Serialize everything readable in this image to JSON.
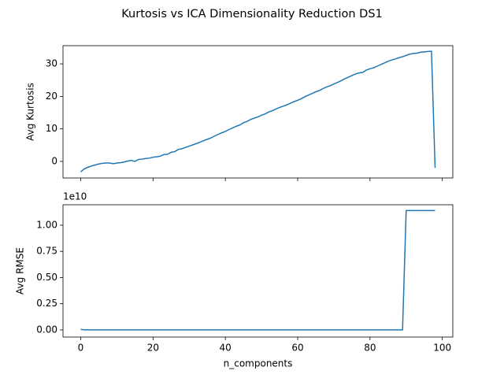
{
  "title": "Kurtosis vs ICA Dimensionality Reduction DS1",
  "chart_data": [
    {
      "type": "line",
      "ylabel": "Avg Kurtosis",
      "color": "#1f77b4",
      "x": [
        0,
        1,
        2,
        3,
        4,
        5,
        6,
        7,
        8,
        9,
        10,
        11,
        12,
        13,
        14,
        15,
        16,
        17,
        18,
        19,
        20,
        21,
        22,
        23,
        24,
        25,
        26,
        27,
        28,
        29,
        30,
        31,
        32,
        33,
        34,
        35,
        36,
        37,
        38,
        39,
        40,
        41,
        42,
        43,
        44,
        45,
        46,
        47,
        48,
        49,
        50,
        51,
        52,
        53,
        54,
        55,
        56,
        57,
        58,
        59,
        60,
        61,
        62,
        63,
        64,
        65,
        66,
        67,
        68,
        69,
        70,
        71,
        72,
        73,
        74,
        75,
        76,
        77,
        78,
        79,
        80,
        81,
        82,
        83,
        84,
        85,
        86,
        87,
        88,
        89,
        90,
        91,
        92,
        93,
        94,
        95,
        96,
        97,
        98
      ],
      "values": [
        -3.2,
        -2.3,
        -1.8,
        -1.4,
        -1.1,
        -0.8,
        -0.6,
        -0.5,
        -0.5,
        -0.7,
        -0.5,
        -0.4,
        -0.2,
        0.1,
        0.3,
        0.0,
        0.6,
        0.7,
        0.9,
        1.0,
        1.3,
        1.4,
        1.6,
        2.1,
        2.2,
        2.8,
        3.0,
        3.7,
        3.9,
        4.3,
        4.7,
        5.1,
        5.5,
        5.9,
        6.4,
        6.8,
        7.2,
        7.8,
        8.3,
        8.8,
        9.2,
        9.8,
        10.3,
        10.8,
        11.2,
        11.9,
        12.3,
        12.9,
        13.3,
        13.7,
        14.2,
        14.6,
        15.2,
        15.6,
        16.1,
        16.6,
        17.0,
        17.4,
        17.9,
        18.4,
        18.8,
        19.3,
        19.9,
        20.4,
        20.9,
        21.4,
        21.8,
        22.4,
        22.9,
        23.3,
        23.8,
        24.3,
        24.8,
        25.4,
        25.9,
        26.4,
        26.9,
        27.2,
        27.4,
        28.1,
        28.5,
        28.8,
        29.3,
        29.8,
        30.3,
        30.8,
        31.2,
        31.5,
        31.9,
        32.2,
        32.6,
        33.0,
        33.2,
        33.3,
        33.6,
        33.7,
        33.8,
        33.9,
        -2.0
      ],
      "xlim": [
        -4.9,
        102.9
      ],
      "xticks": [
        0,
        20,
        40,
        60,
        80,
        100
      ],
      "ylim": [
        -5.1,
        35.6
      ],
      "yticks": [
        0,
        10,
        20,
        30
      ]
    },
    {
      "type": "line",
      "ylabel": "Avg RMSE",
      "xlabel": "n_components",
      "y_offset_label": "1e10",
      "color": "#1f77b4",
      "x": [
        0,
        1,
        2,
        3,
        4,
        5,
        6,
        7,
        8,
        9,
        10,
        11,
        12,
        13,
        14,
        15,
        16,
        17,
        18,
        19,
        20,
        21,
        22,
        23,
        24,
        25,
        26,
        27,
        28,
        29,
        30,
        31,
        32,
        33,
        34,
        35,
        36,
        37,
        38,
        39,
        40,
        41,
        42,
        43,
        44,
        45,
        46,
        47,
        48,
        49,
        50,
        51,
        52,
        53,
        54,
        55,
        56,
        57,
        58,
        59,
        60,
        61,
        62,
        63,
        64,
        65,
        66,
        67,
        68,
        69,
        70,
        71,
        72,
        73,
        74,
        75,
        76,
        77,
        78,
        79,
        80,
        81,
        82,
        83,
        84,
        85,
        86,
        87,
        88,
        89,
        90,
        91,
        92,
        93,
        94,
        95,
        96,
        97,
        98
      ],
      "values": [
        0.005,
        0.001,
        0.001,
        0.001,
        0.001,
        0.001,
        0.001,
        0.001,
        0.001,
        0.001,
        0.001,
        0.001,
        0.001,
        0.001,
        0.001,
        0.001,
        0.001,
        0.001,
        0.001,
        0.001,
        0.001,
        0.001,
        0.001,
        0.001,
        0.001,
        0.001,
        0.001,
        0.001,
        0.001,
        0.001,
        0.001,
        0.001,
        0.001,
        0.001,
        0.001,
        0.001,
        0.001,
        0.001,
        0.001,
        0.001,
        0.001,
        0.001,
        0.001,
        0.001,
        0.001,
        0.001,
        0.001,
        0.001,
        0.001,
        0.001,
        0.001,
        0.001,
        0.001,
        0.001,
        0.001,
        0.001,
        0.001,
        0.001,
        0.001,
        0.001,
        0.001,
        0.001,
        0.001,
        0.001,
        0.001,
        0.001,
        0.001,
        0.001,
        0.001,
        0.001,
        0.001,
        0.001,
        0.001,
        0.001,
        0.001,
        0.001,
        0.001,
        0.001,
        0.001,
        0.001,
        0.001,
        0.001,
        0.001,
        0.001,
        0.001,
        0.001,
        0.001,
        0.001,
        0.001,
        0.001,
        1.14,
        1.14,
        1.14,
        1.14,
        1.14,
        1.14,
        1.14,
        1.14,
        1.14
      ],
      "xlim": [
        -4.9,
        102.9
      ],
      "xticks": [
        0,
        20,
        40,
        60,
        80,
        100
      ],
      "ylim": [
        -0.068,
        1.195
      ],
      "yticks": [
        {
          "value": 0,
          "label": "0.00"
        },
        {
          "value": 0.25,
          "label": "0.25"
        },
        {
          "value": 0.5,
          "label": "0.50"
        },
        {
          "value": 0.75,
          "label": "0.75"
        },
        {
          "value": 1,
          "label": "1.00"
        }
      ]
    }
  ]
}
